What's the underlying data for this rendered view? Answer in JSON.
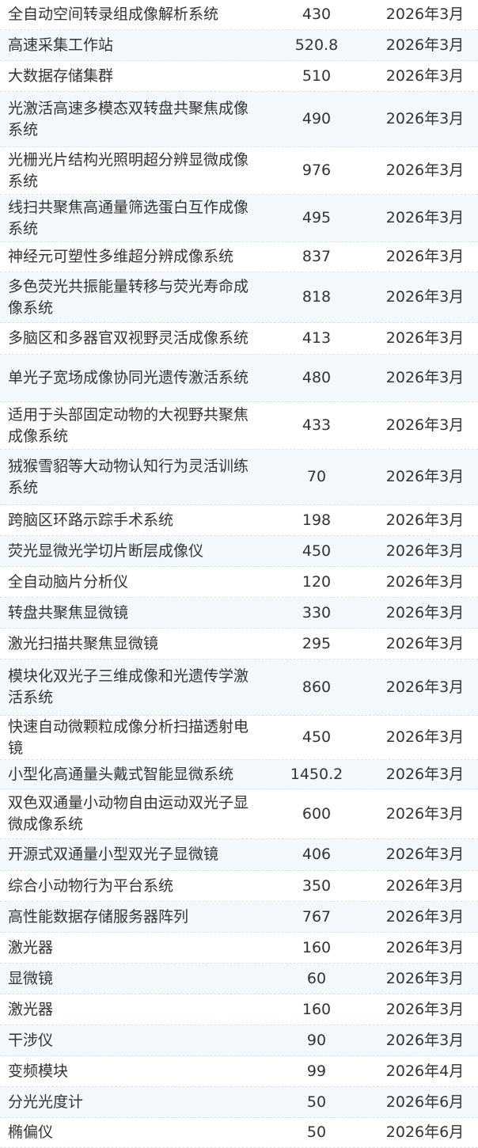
{
  "table": {
    "rows": [
      [
        "全自动空间转录组成像解析系统",
        "430",
        "2026年3月"
      ],
      [
        "高速采集工作站",
        "520.8",
        "2026年3月"
      ],
      [
        "大数据存储集群",
        "510",
        "2026年3月"
      ],
      [
        "光激活高速多模态双转盘共聚焦成像系统",
        "490",
        "2026年3月"
      ],
      [
        "光栅光片结构光照明超分辨显微成像系统",
        "976",
        "2026年3月"
      ],
      [
        "线扫共聚焦高通量筛选蛋白互作成像系统",
        "495",
        "2026年3月"
      ],
      [
        "神经元可塑性多维超分辨成像系统",
        "837",
        "2026年3月"
      ],
      [
        "多色荧光共振能量转移与荧光寿命成像系统",
        "818",
        "2026年3月"
      ],
      [
        "多脑区和多器官双视野灵活成像系统",
        "413",
        "2026年3月"
      ],
      [
        "单光子宽场成像协同光遗传激活系统",
        "480",
        "2026年3月"
      ],
      [
        "适用于头部固定动物的大视野共聚焦成像系统",
        "433",
        "2026年3月"
      ],
      [
        "狨猴雪貂等大动物认知行为灵活训练系统",
        "70",
        "2026年3月"
      ],
      [
        "跨脑区环路示踪手术系统",
        "198",
        "2026年3月"
      ],
      [
        "荧光显微光学切片断层成像仪",
        "450",
        "2026年3月"
      ],
      [
        "全自动脑片分析仪",
        "120",
        "2026年3月"
      ],
      [
        "转盘共聚焦显微镜",
        "330",
        "2026年3月"
      ],
      [
        "激光扫描共聚焦显微镜",
        "295",
        "2026年3月"
      ],
      [
        "模块化双光子三维成像和光遗传学激活系统",
        "860",
        "2026年3月"
      ],
      [
        "快速自动微颗粒成像分析扫描透射电镜",
        "450",
        "2026年3月"
      ],
      [
        "小型化高通量头戴式智能显微系统",
        "1450.2",
        "2026年3月"
      ],
      [
        "双色双通量小动物自由运动双光子显微成像系统",
        "600",
        "2026年3月"
      ],
      [
        "开源式双通量小型双光子显微镜",
        "406",
        "2026年3月"
      ],
      [
        "综合小动物行为平台系统",
        "350",
        "2026年3月"
      ],
      [
        "高性能数据存储服务器阵列",
        "767",
        "2026年3月"
      ],
      [
        "激光器",
        "160",
        "2026年3月"
      ],
      [
        "显微镜",
        "60",
        "2026年3月"
      ],
      [
        "激光器",
        "160",
        "2026年3月"
      ],
      [
        "干涉仪",
        "90",
        "2026年3月"
      ],
      [
        "变频模块",
        "99",
        "2026年4月"
      ],
      [
        "分光光度计",
        "50",
        "2026年6月"
      ],
      [
        "椭偏仪",
        "50",
        "2026年6月"
      ]
    ]
  }
}
